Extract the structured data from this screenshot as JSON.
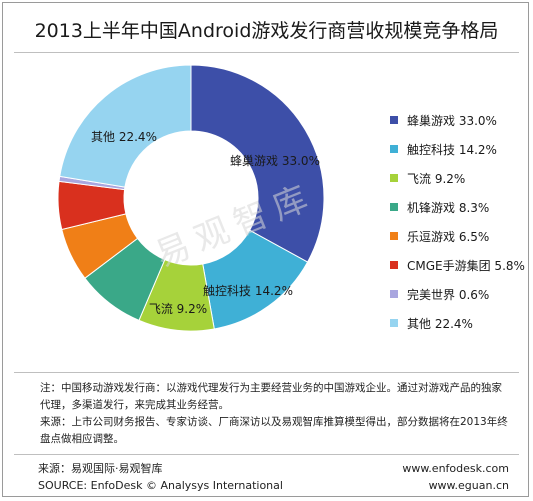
{
  "chart_data": {
    "type": "pie",
    "title": "2013上半年中国Android游戏发行商营收规模竞争格局",
    "donut": true,
    "categories": [
      "蜂巢游戏",
      "触控科技",
      "飞流",
      "机锋游戏",
      "乐逗游戏",
      "CMGE手游集团",
      "完美世界",
      "其他"
    ],
    "values": [
      33.0,
      14.2,
      9.2,
      8.3,
      6.5,
      5.8,
      0.6,
      22.4
    ],
    "slice_labels": [
      "蜂巢游戏 33.0%",
      "触控科技 14.2%",
      "飞流 9.2%",
      "",
      "",
      "",
      "",
      "其他 22.4%"
    ],
    "legend_labels": [
      "蜂巢游戏 33.0%",
      "触控科技 14.2%",
      "飞流 9.2%",
      "机锋游戏 8.3%",
      "乐逗游戏 6.5%",
      "CMGE手游集团 5.8%",
      "完美世界 0.6%",
      "其他 22.4%"
    ],
    "colors": [
      "#3d4fa8",
      "#3fb0d6",
      "#a6d23a",
      "#3aa888",
      "#f07f17",
      "#d9301e",
      "#a9a6df",
      "#96d4f0"
    ],
    "legend_position": "right",
    "grid": false
  },
  "watermark": "易观智库",
  "notes": [
    "注：中国移动游戏发行商：以游戏代理发行为主要经营业务的中国游戏企业。通过对游戏产品的独家代理，多渠道发行，来完成其业务经营。",
    "来源：上市公司财务报告、专家访谈、厂商深访以及易观智库推算模型得出，部分数据将在2013年终盘点做相应调整。"
  ],
  "footer": {
    "source_cn": "来源：易观国际·易观智库",
    "source_en": "SOURCE: EnfoDesk © Analysys International",
    "url1": "www.enfodesk.com",
    "url2": "www.eguan.cn"
  }
}
